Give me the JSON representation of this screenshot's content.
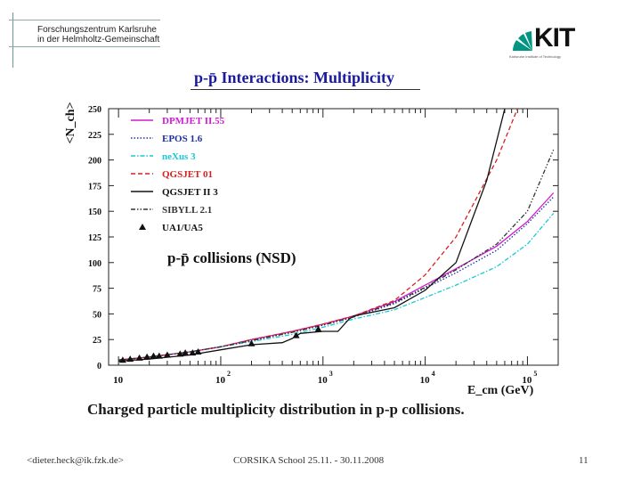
{
  "header": {
    "institution_line1": "Forschungszentrum Karlsruhe",
    "institution_line2": "in der Helmholtz-Gemeinschaft",
    "logo_text": "KIT",
    "logo_subtitle": "Karlsruhe Institute of Technology"
  },
  "slide": {
    "title": "p-p̄ Interactions: Multiplicity",
    "caption": "Charged particle multiplicity distribution in p-p collisions."
  },
  "footer": {
    "email": "<dieter.heck@ik.fzk.de>",
    "event": "CORSIKA School 25.11. - 30.11.2008",
    "page": "11"
  },
  "colors": {
    "title": "#1a1aa0",
    "dpmjet": "#d21ad2",
    "epos": "#2030a0",
    "nexus": "#19c8d8",
    "qgsjet01": "#d82020",
    "qgsjet2": "#111111",
    "sibyll": "#333333"
  },
  "chart_data": {
    "type": "line",
    "title": "p-p̄ collisions (NSD)",
    "ylabel": "<N_ch>",
    "xlabel": "E_cm (GeV)",
    "x_scale": "log",
    "xlim": [
      8,
      200000
    ],
    "ylim": [
      0,
      250
    ],
    "y_ticks": [
      "0",
      "25",
      "50",
      "75",
      "100",
      "125",
      "150",
      "175",
      "200",
      "225",
      "250"
    ],
    "x_ticks": [
      {
        "base": "10",
        "exp": ""
      },
      {
        "base": "10",
        "exp": "2"
      },
      {
        "base": "10",
        "exp": "3"
      },
      {
        "base": "10",
        "exp": "4"
      },
      {
        "base": "10",
        "exp": "5"
      }
    ],
    "legend_position": "top-left",
    "series": [
      {
        "name": "DPMJET II.55",
        "style": "solid",
        "color": "#d21ad2",
        "x": [
          10,
          20,
          50,
          100,
          200,
          500,
          1000,
          2000,
          5000,
          10000,
          20000,
          50000,
          100000,
          180000
        ],
        "y": [
          5,
          8,
          13,
          18,
          25,
          33,
          40,
          48,
          62,
          78,
          94,
          116,
          140,
          168
        ]
      },
      {
        "name": "EPOS 1.6",
        "style": "dotted",
        "color": "#2030a0",
        "x": [
          10,
          20,
          50,
          100,
          200,
          500,
          1000,
          2000,
          5000,
          10000,
          20000,
          50000,
          100000,
          180000
        ],
        "y": [
          5,
          8,
          13,
          18,
          24,
          32,
          39,
          47,
          60,
          75,
          90,
          112,
          138,
          164
        ]
      },
      {
        "name": "neXus 3",
        "style": "dashdot",
        "color": "#19c8d8",
        "x": [
          10,
          20,
          50,
          100,
          200,
          500,
          1000,
          2000,
          5000,
          10000,
          20000,
          50000,
          100000,
          180000
        ],
        "y": [
          5,
          8,
          13,
          18,
          23,
          30,
          37,
          45,
          54,
          66,
          78,
          96,
          118,
          148
        ]
      },
      {
        "name": "QGSJET 01",
        "style": "dashed",
        "color": "#d82020",
        "x": [
          10,
          20,
          50,
          100,
          200,
          500,
          1000,
          2000,
          5000,
          10000,
          20000,
          50000,
          80000
        ],
        "y": [
          5,
          8,
          13,
          18,
          25,
          33,
          40,
          48,
          63,
          88,
          125,
          200,
          250
        ]
      },
      {
        "name": "QGSJET II 3",
        "style": "solid",
        "color": "#111111",
        "x": [
          10,
          20,
          50,
          100,
          200,
          400,
          500,
          600,
          1000,
          1400,
          1800,
          2000,
          5000,
          10000,
          20000,
          40000,
          60000
        ],
        "y": [
          4,
          6,
          10,
          15,
          20,
          22,
          26,
          31,
          33,
          33,
          45,
          48,
          56,
          73,
          100,
          180,
          250
        ]
      },
      {
        "name": "SIBYLL 2.1",
        "style": "dashdotdot",
        "color": "#333333",
        "x": [
          10,
          20,
          50,
          100,
          200,
          500,
          1000,
          2000,
          5000,
          10000,
          20000,
          50000,
          100000,
          180000
        ],
        "y": [
          5,
          8,
          13,
          18,
          24,
          32,
          39,
          47,
          61,
          76,
          93,
          118,
          150,
          210
        ]
      }
    ],
    "data_points": {
      "name": "UA1/UA5",
      "marker": "triangle",
      "x": [
        11,
        13,
        16,
        19,
        22,
        25,
        30,
        40,
        45,
        53,
        60,
        200,
        546,
        900
      ],
      "y": [
        5,
        6,
        7,
        8,
        9,
        9,
        10,
        11,
        12,
        12,
        13,
        21,
        29,
        35
      ]
    }
  }
}
